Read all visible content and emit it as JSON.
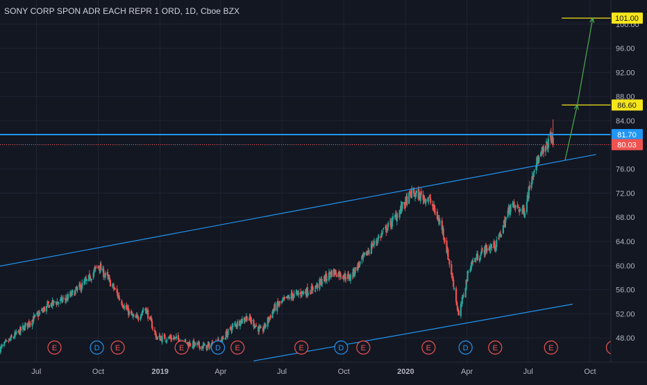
{
  "symbol": {
    "title": "SONY CORP SPON ADR EACH REPR 1 ORD, 1D, Cboe BZX"
  },
  "theme": {
    "background": "#131722",
    "grid": "#1f2433",
    "text": "#b2b5be",
    "up": "#26a69a",
    "down": "#ef5350",
    "trendline": "#2196f3",
    "resistance": "#2196f3",
    "last_price": "#ef5350",
    "target": "#f5e51b",
    "projection": "#4caf50",
    "event_ring": "#ef5350",
    "dividend_ring": "#2196f3"
  },
  "chart_data": {
    "type": "candlestick",
    "title": "SONY CORP SPON ADR EACH REPR 1 ORD, 1D, Cboe BZX",
    "ylim": [
      44.0,
      104.0
    ],
    "y_ticks": [
      "48.00",
      "52.00",
      "56.00",
      "60.00",
      "64.00",
      "68.00",
      "72.00",
      "76.00",
      "80.00",
      "84.00",
      "88.00",
      "92.00",
      "96.00",
      "100.00"
    ],
    "x_ticks": [
      {
        "label": "Jul",
        "date": "2018-07-01"
      },
      {
        "label": "Oct",
        "date": "2018-10-01"
      },
      {
        "label": "2019",
        "date": "2019-01-01"
      },
      {
        "label": "Apr",
        "date": "2019-04-01"
      },
      {
        "label": "Jul",
        "date": "2019-07-01"
      },
      {
        "label": "Oct",
        "date": "2019-10-01"
      },
      {
        "label": "2020",
        "date": "2020-01-01"
      },
      {
        "label": "Apr",
        "date": "2020-04-01"
      },
      {
        "label": "Jul",
        "date": "2020-07-01"
      },
      {
        "label": "Oct",
        "date": "2020-10-01"
      }
    ],
    "x_range": [
      "2018-05-08",
      "2020-11-01"
    ],
    "price_path": [
      {
        "date": "2018-05-08",
        "close": 46.2
      },
      {
        "date": "2018-06-10",
        "close": 49.5
      },
      {
        "date": "2018-07-20",
        "close": 53.5
      },
      {
        "date": "2018-08-15",
        "close": 54.5
      },
      {
        "date": "2018-09-15",
        "close": 57.5
      },
      {
        "date": "2018-10-01",
        "close": 60.0
      },
      {
        "date": "2018-10-20",
        "close": 57.0
      },
      {
        "date": "2018-11-10",
        "close": 53.0
      },
      {
        "date": "2018-11-25",
        "close": 51.0
      },
      {
        "date": "2018-12-10",
        "close": 53.0
      },
      {
        "date": "2018-12-27",
        "close": 48.0
      },
      {
        "date": "2019-01-20",
        "close": 48.0
      },
      {
        "date": "2019-02-15",
        "close": 47.0
      },
      {
        "date": "2019-03-10",
        "close": 46.5
      },
      {
        "date": "2019-04-01",
        "close": 47.5
      },
      {
        "date": "2019-04-20",
        "close": 50.0
      },
      {
        "date": "2019-05-10",
        "close": 51.5
      },
      {
        "date": "2019-06-01",
        "close": 49.0
      },
      {
        "date": "2019-06-20",
        "close": 53.0
      },
      {
        "date": "2019-07-15",
        "close": 55.0
      },
      {
        "date": "2019-08-15",
        "close": 56.0
      },
      {
        "date": "2019-09-15",
        "close": 59.0
      },
      {
        "date": "2019-10-10",
        "close": 58.0
      },
      {
        "date": "2019-11-10",
        "close": 63.0
      },
      {
        "date": "2019-12-10",
        "close": 67.0
      },
      {
        "date": "2020-01-10",
        "close": 72.0
      },
      {
        "date": "2020-02-05",
        "close": 71.0
      },
      {
        "date": "2020-02-25",
        "close": 66.0
      },
      {
        "date": "2020-03-12",
        "close": 57.0
      },
      {
        "date": "2020-03-20",
        "close": 51.5
      },
      {
        "date": "2020-04-05",
        "close": 60.0
      },
      {
        "date": "2020-04-25",
        "close": 62.5
      },
      {
        "date": "2020-05-15",
        "close": 63.5
      },
      {
        "date": "2020-06-05",
        "close": 70.0
      },
      {
        "date": "2020-06-25",
        "close": 69.0
      },
      {
        "date": "2020-07-10",
        "close": 76.5
      },
      {
        "date": "2020-07-25",
        "close": 79.0
      },
      {
        "date": "2020-08-04",
        "close": 81.5
      },
      {
        "date": "2020-08-07",
        "close": 80.03
      }
    ],
    "last_bar": {
      "date": "2020-08-07",
      "high": 84.2,
      "close": 80.03
    },
    "horizontal_lines": [
      {
        "kind": "resistance",
        "price": 81.7,
        "label": "81.70"
      },
      {
        "kind": "last-price",
        "price": 80.03,
        "label": "80.03"
      }
    ],
    "targets": [
      {
        "price": 101.0,
        "label": "101.00",
        "from_date": "2020-08-20"
      },
      {
        "price": 86.6,
        "label": "86.60",
        "from_date": "2020-08-20"
      }
    ],
    "trendlines": [
      {
        "name": "upper-channel",
        "start": {
          "date": "2018-05-08",
          "price": 59.9
        },
        "end": {
          "date": "2020-10-10",
          "price": 78.4
        }
      },
      {
        "name": "lower-channel",
        "start": {
          "date": "2019-05-20",
          "price": 44.2
        },
        "end": {
          "date": "2020-09-05",
          "price": 53.6
        }
      }
    ],
    "projection": [
      {
        "date": "2020-08-25",
        "price": 77.5
      },
      {
        "date": "2020-09-12",
        "price": 86.6
      },
      {
        "date": "2020-10-05",
        "price": 101.0
      }
    ],
    "events": [
      {
        "type": "E",
        "date": "2018-07-28"
      },
      {
        "type": "D",
        "date": "2018-09-29"
      },
      {
        "type": "E",
        "date": "2018-10-30"
      },
      {
        "type": "E",
        "date": "2019-02-02"
      },
      {
        "type": "D",
        "date": "2019-03-28"
      },
      {
        "type": "E",
        "date": "2019-04-26"
      },
      {
        "type": "E",
        "date": "2019-07-30"
      },
      {
        "type": "D",
        "date": "2019-09-27"
      },
      {
        "type": "E",
        "date": "2019-10-30"
      },
      {
        "type": "E",
        "date": "2020-02-04"
      },
      {
        "type": "D",
        "date": "2020-03-30"
      },
      {
        "type": "E",
        "date": "2020-05-13"
      },
      {
        "type": "E",
        "date": "2020-08-04"
      },
      {
        "type": "E",
        "date": "2020-11-04"
      }
    ]
  }
}
